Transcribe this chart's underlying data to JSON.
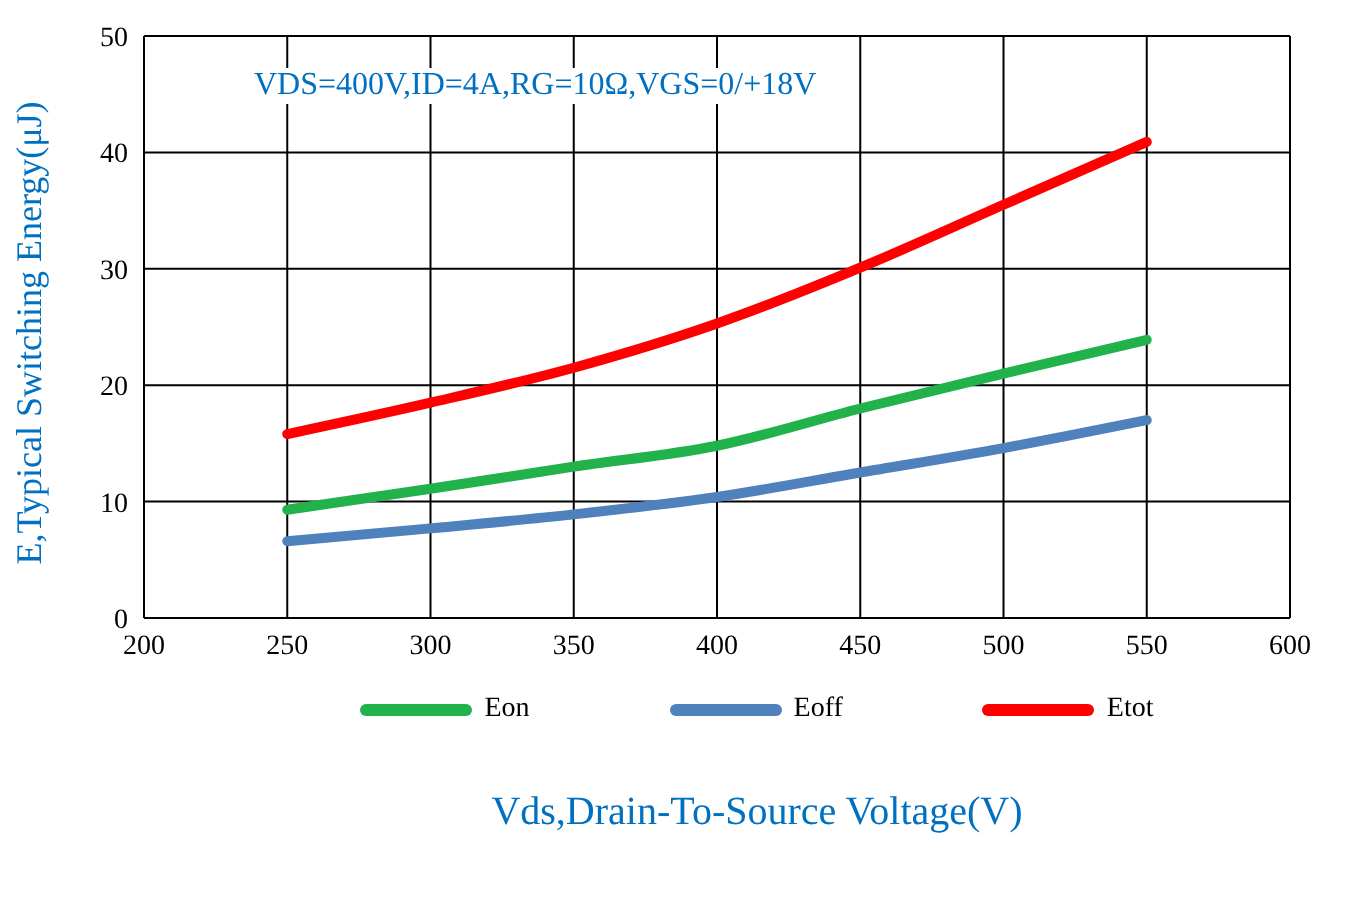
{
  "chart_data": {
    "type": "line",
    "xlabel": "Vds,Drain-To-Source Voltage(V)",
    "ylabel": "E,Typical Switching Energy(μJ)",
    "annotations": [
      "VDS=400V,ID=4A,RG=10Ω,VGS=0/+18V"
    ],
    "x": [
      250,
      300,
      350,
      400,
      450,
      500,
      550
    ],
    "series": [
      {
        "name": "Eon",
        "color": "#21b24b",
        "values": [
          9.3,
          11.1,
          13,
          14.8,
          18,
          21,
          23.9
        ]
      },
      {
        "name": "Eoff",
        "color": "#4f81bd",
        "values": [
          6.6,
          7.7,
          8.9,
          10.4,
          12.5,
          14.6,
          17
        ]
      },
      {
        "name": "Etot",
        "color": "#ff0000",
        "values": [
          15.8,
          18.5,
          21.5,
          25.3,
          30.1,
          35.5,
          40.9
        ]
      }
    ],
    "xlim": [
      200,
      600
    ],
    "xticks": [
      200,
      250,
      300,
      350,
      400,
      450,
      500,
      550,
      600
    ],
    "ylim": [
      0,
      50
    ],
    "yticks": [
      0,
      10,
      20,
      30,
      40,
      50
    ],
    "grid": true,
    "legend": "bottom",
    "marker": "none",
    "line_style": "solid"
  }
}
